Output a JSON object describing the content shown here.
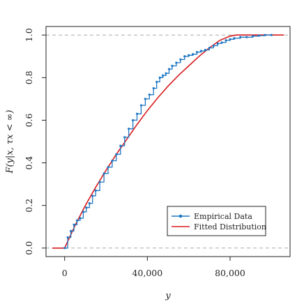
{
  "chart_data": {
    "type": "line",
    "xlabel": "y",
    "ylabel": "F(y|x, τx < ∞)",
    "xlim": [
      -9000,
      109000
    ],
    "ylim": [
      -0.04,
      1.04
    ],
    "x_ticks": [
      0,
      40000,
      80000
    ],
    "x_tick_labels": [
      "0",
      "40,000",
      "80,000"
    ],
    "y_ticks": [
      0.0,
      0.2,
      0.4,
      0.6,
      0.8,
      1.0
    ],
    "y_tick_labels": [
      "0.0",
      "0.2",
      "0.4",
      "0.6",
      "0.8",
      "1.0"
    ],
    "reference_lines": [
      0,
      1
    ],
    "grid": false,
    "legend_position": "bottom-right",
    "colors": {
      "empirical": "#1f77c4",
      "fitted": "#d7191c",
      "reference": "#aaaaaa",
      "axis": "#222222"
    },
    "series": [
      {
        "name": "Empirical Data",
        "style": "step-points",
        "x": [
          0,
          1500,
          3000,
          4500,
          6000,
          7500,
          9000,
          10500,
          12000,
          13500,
          15000,
          17000,
          19000,
          21000,
          23000,
          25000,
          27000,
          29000,
          31000,
          33000,
          35000,
          37000,
          39000,
          41000,
          43000,
          44500,
          46000,
          47500,
          49000,
          50500,
          52000,
          54000,
          56000,
          58000,
          60000,
          62000,
          64000,
          66000,
          68000,
          70000,
          72000,
          74000,
          76000,
          78000,
          80000,
          82000,
          85000,
          88000,
          91000,
          94000,
          97000,
          100000
        ],
        "y": [
          0.0,
          0.05,
          0.08,
          0.11,
          0.13,
          0.14,
          0.17,
          0.19,
          0.21,
          0.245,
          0.27,
          0.31,
          0.35,
          0.38,
          0.41,
          0.44,
          0.48,
          0.52,
          0.56,
          0.6,
          0.63,
          0.67,
          0.7,
          0.72,
          0.75,
          0.78,
          0.8,
          0.81,
          0.82,
          0.84,
          0.855,
          0.87,
          0.885,
          0.9,
          0.905,
          0.91,
          0.92,
          0.925,
          0.93,
          0.94,
          0.95,
          0.96,
          0.965,
          0.975,
          0.98,
          0.985,
          0.99,
          0.99,
          0.995,
          0.997,
          1.0,
          1.0
        ]
      },
      {
        "name": "Fitted Distribution",
        "style": "line",
        "x": [
          -6000,
          0,
          5000,
          10000,
          15000,
          20000,
          25000,
          30000,
          35000,
          40000,
          45000,
          50000,
          55000,
          60000,
          65000,
          70000,
          75000,
          80000,
          83000,
          90000,
          100000,
          106000
        ],
        "y": [
          0.0,
          0.0,
          0.105,
          0.2,
          0.285,
          0.365,
          0.44,
          0.51,
          0.58,
          0.645,
          0.705,
          0.76,
          0.81,
          0.855,
          0.9,
          0.94,
          0.975,
          0.995,
          1.0,
          1.0,
          1.0,
          1.0
        ]
      }
    ]
  }
}
